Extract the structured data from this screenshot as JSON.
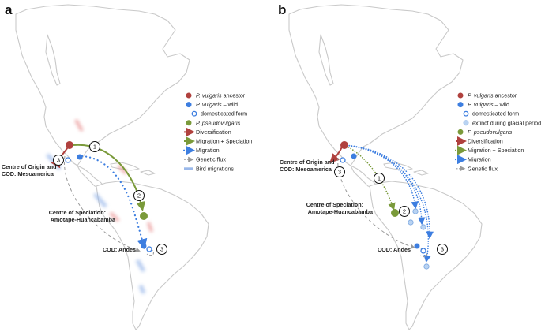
{
  "panels": [
    {
      "letter": "a",
      "labels": {
        "origin_line1": "Centre of Origin and",
        "origin_line2": "COD: Mesoamerica",
        "speciation_line1": "Centre of Speciation:",
        "speciation_line2": "Amotape-Huancabamba",
        "cod_andes": "COD: Andes"
      },
      "markers": [
        "1",
        "2",
        "3",
        "3"
      ],
      "legend": [
        {
          "italic": "P. vulgaris",
          "rest": " ancestor",
          "symbol": "dot",
          "color": "#b0413e"
        },
        {
          "italic": "P. vulgaris",
          "rest": " – wild",
          "symbol": "dot",
          "color": "#3d7ee0"
        },
        {
          "italic": "",
          "rest": "domesticated form",
          "symbol": "dom",
          "color": "#3d7ee0"
        },
        {
          "italic": "P. pseudovulgaris",
          "rest": "",
          "symbol": "dot",
          "color": "#7a9a3a"
        },
        {
          "italic": "",
          "rest": "Diversification",
          "symbol": "arrow",
          "color": "#b0413e"
        },
        {
          "italic": "",
          "rest": "Migration + Speciation",
          "symbol": "arrow",
          "color": "#7a9a3a"
        },
        {
          "italic": "",
          "rest": "Migration",
          "symbol": "dotted",
          "color": "#3d7ee0"
        },
        {
          "italic": "",
          "rest": "Genetic flux",
          "symbol": "dashed",
          "color": "#999999"
        },
        {
          "italic": "",
          "rest": "Bird migrations",
          "symbol": "wide",
          "color": "#9ab8ea"
        }
      ]
    },
    {
      "letter": "b",
      "labels": {
        "origin_line1": "Centre of Origin and",
        "origin_line2": "COD: Mesoamerica",
        "speciation_line1": "Centre of Speciation:",
        "speciation_line2": "Amotape-Huancabamba",
        "cod_andes": "COD: Andes"
      },
      "markers": [
        "1",
        "2",
        "3",
        "3"
      ],
      "legend": [
        {
          "italic": "P. vulgaris",
          "rest": " ancestor",
          "symbol": "dot",
          "color": "#b0413e"
        },
        {
          "italic": "P. vulgaris",
          "rest": " – wild",
          "symbol": "dot",
          "color": "#3d7ee0"
        },
        {
          "italic": "",
          "rest": "domesticated form",
          "symbol": "dom",
          "color": "#3d7ee0"
        },
        {
          "italic": "",
          "rest": "extinct during glacial periods",
          "symbol": "faded",
          "color": "#9cc0ea"
        },
        {
          "italic": "P. pseudovulgaris",
          "rest": "",
          "symbol": "dot",
          "color": "#7a9a3a"
        },
        {
          "italic": "",
          "rest": "Diversification",
          "symbol": "arrow",
          "color": "#b0413e"
        },
        {
          "italic": "",
          "rest": "Migration + Speciation",
          "symbol": "dotarrow",
          "color": "#7a9a3a"
        },
        {
          "italic": "",
          "rest": "Migration",
          "symbol": "dotarrow",
          "color": "#3d7ee0"
        },
        {
          "italic": "",
          "rest": "Genetic flux",
          "symbol": "dashed",
          "color": "#999999"
        }
      ]
    }
  ]
}
